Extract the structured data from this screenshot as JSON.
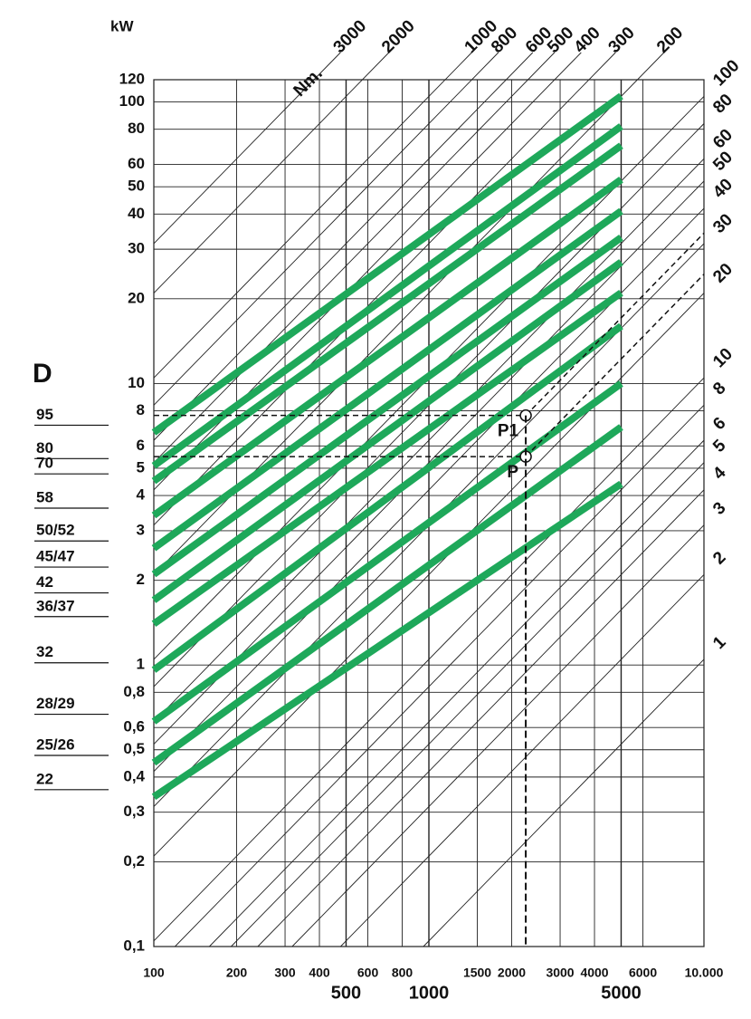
{
  "chart_data": {
    "type": "line",
    "y_label": "kW",
    "d_label": "D",
    "torque_unit": "Nm.",
    "x": [
      100,
      5000
    ],
    "color": "#1ea85a",
    "series": [
      {
        "name": "95",
        "values": [
          6.7,
          105
        ]
      },
      {
        "name": "80",
        "values": [
          5.1,
          82
        ]
      },
      {
        "name": "70",
        "values": [
          4.5,
          70
        ]
      },
      {
        "name": "58",
        "values": [
          3.4,
          53
        ]
      },
      {
        "name": "50/52",
        "values": [
          2.6,
          41
        ]
      },
      {
        "name": "45/47",
        "values": [
          2.1,
          33
        ]
      },
      {
        "name": "42",
        "values": [
          1.7,
          27
        ]
      },
      {
        "name": "36/37",
        "values": [
          1.4,
          21
        ]
      },
      {
        "name": "32",
        "values": [
          0.96,
          16
        ]
      },
      {
        "name": "28/29",
        "values": [
          0.63,
          10
        ]
      },
      {
        "name": "25/26",
        "values": [
          0.45,
          7
        ]
      },
      {
        "name": "22",
        "values": [
          0.34,
          4.4
        ]
      }
    ],
    "log_x": true,
    "log_y": true,
    "grid": true,
    "xlim": [
      100,
      10000
    ],
    "ylim": [
      0.1,
      120
    ],
    "xticks": [
      100,
      200,
      300,
      400,
      600,
      800,
      1500,
      2000,
      3000,
      4000,
      6000,
      {
        "value": 10000,
        "label": "10.000"
      }
    ],
    "xticks_bold": [
      500,
      1000,
      5000
    ],
    "yticks": [
      {
        "value": 0.1,
        "label": "0,1"
      },
      {
        "value": 0.2,
        "label": "0,2"
      },
      {
        "value": 0.3,
        "label": "0,3"
      },
      {
        "value": 0.4,
        "label": "0,4"
      },
      {
        "value": 0.5,
        "label": "0,5"
      },
      {
        "value": 0.6,
        "label": "0,6"
      },
      {
        "value": 0.8,
        "label": "0,8"
      },
      1,
      2,
      3,
      4,
      5,
      6,
      8,
      10,
      20,
      30,
      40,
      50,
      60,
      80,
      100,
      120
    ],
    "torque_top": [
      3000,
      2000,
      1000,
      800,
      600,
      500,
      400,
      300,
      200
    ],
    "torque_right": [
      100,
      80,
      60,
      50,
      40,
      30,
      20,
      10,
      8,
      6,
      5,
      4,
      3,
      2,
      1
    ],
    "points": [
      {
        "label": "P",
        "x": 2250,
        "y": 5.5
      },
      {
        "label": "P1",
        "x": 2250,
        "y": 7.7
      }
    ]
  }
}
